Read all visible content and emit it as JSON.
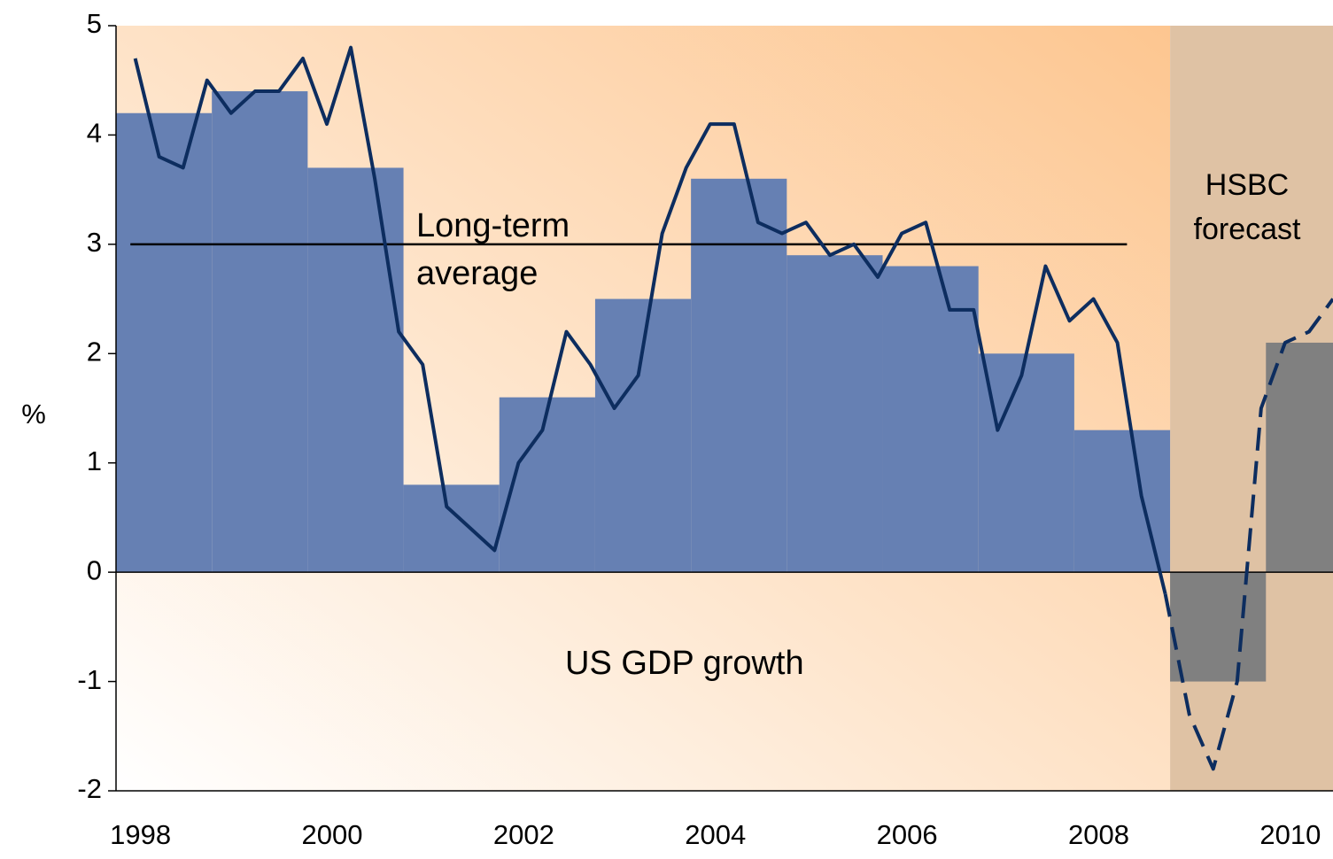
{
  "chart_data": {
    "type": "bar_line",
    "y_label": "%",
    "xlim": [
      1997.8,
      2010.5
    ],
    "xticks": [
      1998,
      2000,
      2002,
      2004,
      2006,
      2008,
      2010
    ],
    "ylim": [
      -2,
      5
    ],
    "yticks": [
      -2,
      -1,
      0,
      1,
      2,
      3,
      4,
      5
    ],
    "forecast_from": 2008.8,
    "bars": {
      "x": [
        1998,
        1999,
        2000,
        2001,
        2002,
        2003,
        2004,
        2005,
        2006,
        2007,
        2008,
        2009,
        2010
      ],
      "values": [
        4.2,
        4.4,
        3.7,
        0.8,
        1.6,
        2.5,
        3.6,
        2.9,
        2.8,
        2.0,
        1.3,
        -1.0,
        2.1
      ],
      "color": "#6680b3",
      "forecast_color": "#808080"
    },
    "line_x": [
      1998,
      1998.25,
      1998.5,
      1998.75,
      1999,
      1999.25,
      1999.5,
      1999.75,
      2000,
      2000.25,
      2000.5,
      2000.75,
      2001,
      2001.25,
      2001.5,
      2001.75,
      2002,
      2002.25,
      2002.5,
      2002.75,
      2003,
      2003.25,
      2003.5,
      2003.75,
      2004,
      2004.25,
      2004.5,
      2004.75,
      2005,
      2005.25,
      2005.5,
      2005.75,
      2006,
      2006.25,
      2006.5,
      2006.75,
      2007,
      2007.25,
      2007.5,
      2007.75,
      2008,
      2008.25,
      2008.5,
      2008.75,
      2009,
      2009.25,
      2009.5,
      2009.75,
      2010,
      2010.25,
      2010.5
    ],
    "series": [
      {
        "color": "#0d2d5f",
        "dashed": false,
        "values": [
          4.7,
          3.8,
          3.7,
          4.5,
          4.2,
          4.4,
          4.4,
          4.7,
          4.1,
          4.8,
          3.6,
          2.2,
          1.9,
          0.6,
          0.4,
          0.2,
          1.0,
          1.3,
          2.2,
          1.9,
          1.5,
          1.8,
          3.1,
          3.7,
          4.1,
          4.1,
          3.2,
          3.1,
          3.2,
          2.9,
          3.0,
          2.7,
          3.1,
          3.2,
          2.4,
          2.4,
          1.3,
          1.8,
          2.8,
          2.3,
          2.5,
          2.1,
          0.7,
          -0.2,
          null,
          null,
          null,
          null,
          null,
          null,
          null
        ]
      },
      {
        "color": "#0d2d5f",
        "dashed": true,
        "values": [
          null,
          null,
          null,
          null,
          null,
          null,
          null,
          null,
          null,
          null,
          null,
          null,
          null,
          null,
          null,
          null,
          null,
          null,
          null,
          null,
          null,
          null,
          null,
          null,
          null,
          null,
          null,
          null,
          null,
          null,
          null,
          null,
          null,
          null,
          null,
          null,
          null,
          null,
          null,
          null,
          null,
          null,
          null,
          -0.2,
          -1.3,
          -1.8,
          -1.0,
          1.5,
          2.1,
          2.2,
          2.5
        ]
      }
    ],
    "average": {
      "value": 3,
      "x": [
        1997.95,
        2008.35
      ],
      "label": "Long-term average"
    },
    "forecast_label": "HSBC forecast",
    "annotation": "US GDP growth"
  }
}
